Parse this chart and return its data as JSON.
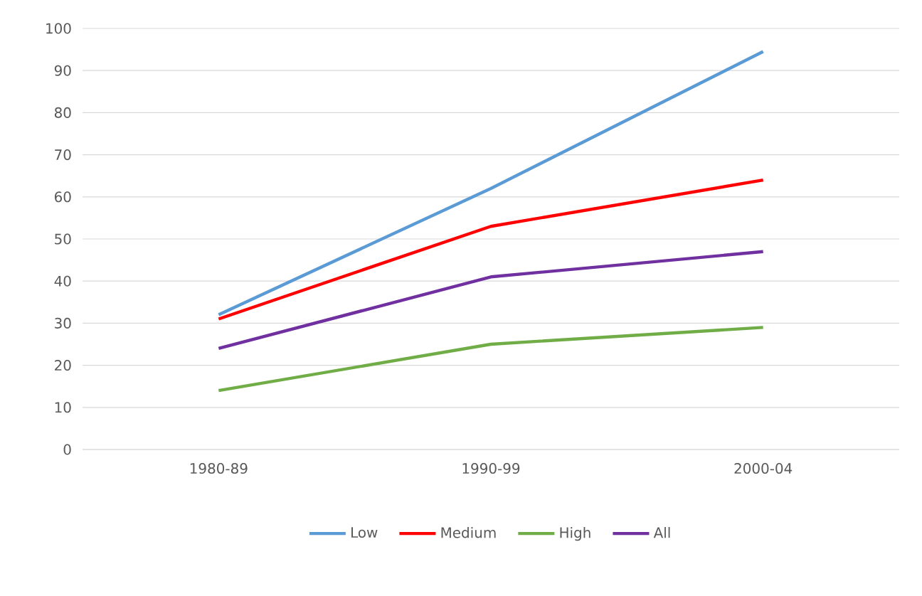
{
  "chart_data": {
    "type": "line",
    "categories": [
      "1980-89",
      "1990-99",
      "2000-04"
    ],
    "series": [
      {
        "name": "Low",
        "color": "#5b9bd5",
        "values": [
          32,
          62,
          94.5
        ]
      },
      {
        "name": "Medium",
        "color": "#ff0000",
        "values": [
          31,
          53,
          64
        ]
      },
      {
        "name": "High",
        "color": "#70ad47",
        "values": [
          14,
          25,
          29
        ]
      },
      {
        "name": "All",
        "color": "#7030a0",
        "values": [
          24,
          41,
          47
        ]
      }
    ],
    "ylim": [
      0,
      100
    ],
    "yticks": [
      0,
      10,
      20,
      30,
      40,
      50,
      60,
      70,
      80,
      90,
      100
    ],
    "grid": "y",
    "legend": "bottom"
  }
}
